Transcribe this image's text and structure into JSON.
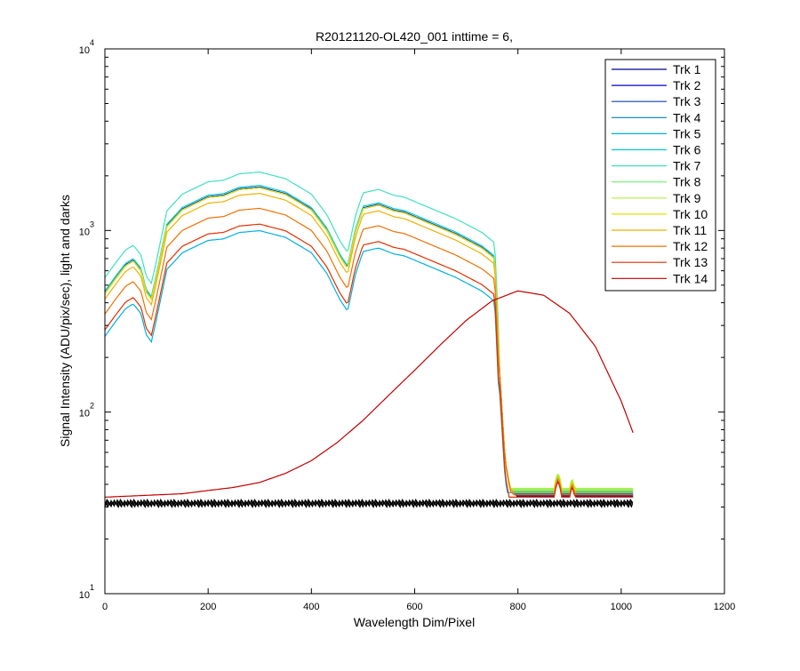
{
  "chart_data": {
    "type": "line",
    "title": "R20121120-OL420_001 inttime = 6,",
    "xlabel": "Wavelength Dim/Pixel",
    "ylabel": "Signal Intensity (ADU/pix/sec), light and darks",
    "xlim": [
      0,
      1200
    ],
    "ylim": [
      10,
      10000
    ],
    "yscale": "log",
    "grid": false,
    "legend_position": "top-right",
    "x_ticks": [
      "0",
      "200",
      "400",
      "600",
      "800",
      "1000",
      "1200"
    ],
    "y_ticks": [
      {
        "base": "10",
        "exp": "1"
      },
      {
        "base": "10",
        "exp": "2"
      },
      {
        "base": "10",
        "exp": "3"
      },
      {
        "base": "10",
        "exp": "4"
      }
    ],
    "series": [
      {
        "name": "Trk 1",
        "color": "#00008f",
        "profile": "light",
        "scale": 1.0,
        "dark": 34.5
      },
      {
        "name": "Trk 2",
        "color": "#0000cf",
        "profile": "light",
        "scale": 1.01,
        "dark": 34.0
      },
      {
        "name": "Trk 3",
        "color": "#1040b0",
        "profile": "light",
        "scale": 1.0,
        "dark": 35.0
      },
      {
        "name": "Trk 4",
        "color": "#007fbf",
        "profile": "light",
        "scale": 1.0,
        "dark": 35.5
      },
      {
        "name": "Trk 5",
        "color": "#00b0e0",
        "profile": "light",
        "scale": 0.58,
        "dark": 36.0
      },
      {
        "name": "Trk 6",
        "color": "#00d0d0",
        "profile": "light",
        "scale": 1.03,
        "dark": 36.5
      },
      {
        "name": "Trk 7",
        "color": "#40e0c0",
        "profile": "light",
        "scale": 1.22,
        "dark": 37.0
      },
      {
        "name": "Trk 8",
        "color": "#70f070",
        "profile": "light",
        "scale": 1.0,
        "dark": 37.5
      },
      {
        "name": "Trk 9",
        "color": "#b0f040",
        "profile": "light",
        "scale": 1.0,
        "dark": 38.0
      },
      {
        "name": "Trk 10",
        "color": "#e0e000",
        "profile": "light",
        "scale": 1.0,
        "dark": 37.0
      },
      {
        "name": "Trk 11",
        "color": "#f0b000",
        "profile": "light",
        "scale": 0.93,
        "dark": 36.0
      },
      {
        "name": "Trk 12",
        "color": "#f07000",
        "profile": "light",
        "scale": 0.77,
        "dark": 35.0
      },
      {
        "name": "Trk 13",
        "color": "#e03000",
        "profile": "light",
        "scale": 0.63,
        "dark": 34.0
      },
      {
        "name": "Trk 14",
        "color": "#c00000",
        "profile": "lamp",
        "scale": 1.0,
        "dark": 33.5
      }
    ],
    "dark_level": 31,
    "light_profile": {
      "x": [
        0,
        20,
        40,
        55,
        70,
        80,
        90,
        100,
        120,
        150,
        200,
        230,
        260,
        300,
        350,
        400,
        430,
        455,
        470,
        485,
        500,
        530,
        560,
        580,
        620,
        680,
        730,
        745,
        755,
        765,
        775,
        785,
        800,
        850,
        1023
      ],
      "y": [
        450,
        540,
        640,
        680,
        600,
        460,
        420,
        560,
        1050,
        1300,
        1520,
        1550,
        1680,
        1720,
        1580,
        1300,
        1000,
        720,
        620,
        980,
        1320,
        1380,
        1280,
        1250,
        1120,
        950,
        800,
        740,
        700,
        160,
        55,
        38,
        34,
        34,
        34
      ]
    },
    "lamp_profile": {
      "x": [
        0,
        50,
        100,
        150,
        200,
        250,
        300,
        350,
        400,
        450,
        500,
        550,
        600,
        650,
        700,
        750,
        800,
        850,
        900,
        950,
        1000,
        1023
      ],
      "y": [
        34,
        34.5,
        35,
        35.5,
        37,
        38.5,
        41,
        46,
        54,
        68,
        90,
        124,
        170,
        235,
        320,
        410,
        465,
        440,
        350,
        230,
        115,
        77
      ]
    }
  }
}
